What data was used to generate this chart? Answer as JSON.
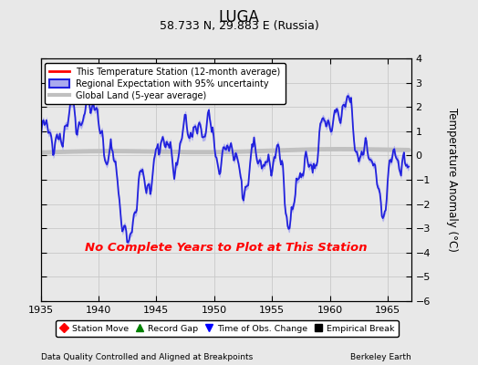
{
  "title": "LUGA",
  "subtitle": "58.733 N, 29.883 E (Russia)",
  "ylabel": "Temperature Anomaly (°C)",
  "xlabel_bottom": "Data Quality Controlled and Aligned at Breakpoints",
  "xlabel_right": "Berkeley Earth",
  "ylim": [
    -6,
    4
  ],
  "xlim": [
    1935,
    1967
  ],
  "xticks": [
    1935,
    1940,
    1945,
    1950,
    1955,
    1960,
    1965
  ],
  "yticks": [
    -6,
    -5,
    -4,
    -3,
    -2,
    -1,
    0,
    1,
    2,
    3,
    4
  ],
  "background_color": "#e8e8e8",
  "plot_bg_color": "#e8e8e8",
  "no_data_text": "No Complete Years to Plot at This Station",
  "no_data_color": "red",
  "regional_color": "#2222dd",
  "regional_fill": "#aaaaee",
  "global_color": "#c0c0c0",
  "legend_items": [
    {
      "label": "This Temperature Station (12-month average)",
      "color": "red",
      "lw": 2
    },
    {
      "label": "Regional Expectation with 95% uncertainty",
      "color": "#2222dd",
      "lw": 2,
      "fill": "#aaaaee"
    },
    {
      "label": "Global Land (5-year average)",
      "color": "#c0c0c0",
      "lw": 3
    }
  ],
  "bottom_legend": [
    {
      "label": "Station Move",
      "color": "red",
      "marker": "D"
    },
    {
      "label": "Record Gap",
      "color": "green",
      "marker": "^"
    },
    {
      "label": "Time of Obs. Change",
      "color": "blue",
      "marker": "v"
    },
    {
      "label": "Empirical Break",
      "color": "black",
      "marker": "s"
    }
  ]
}
